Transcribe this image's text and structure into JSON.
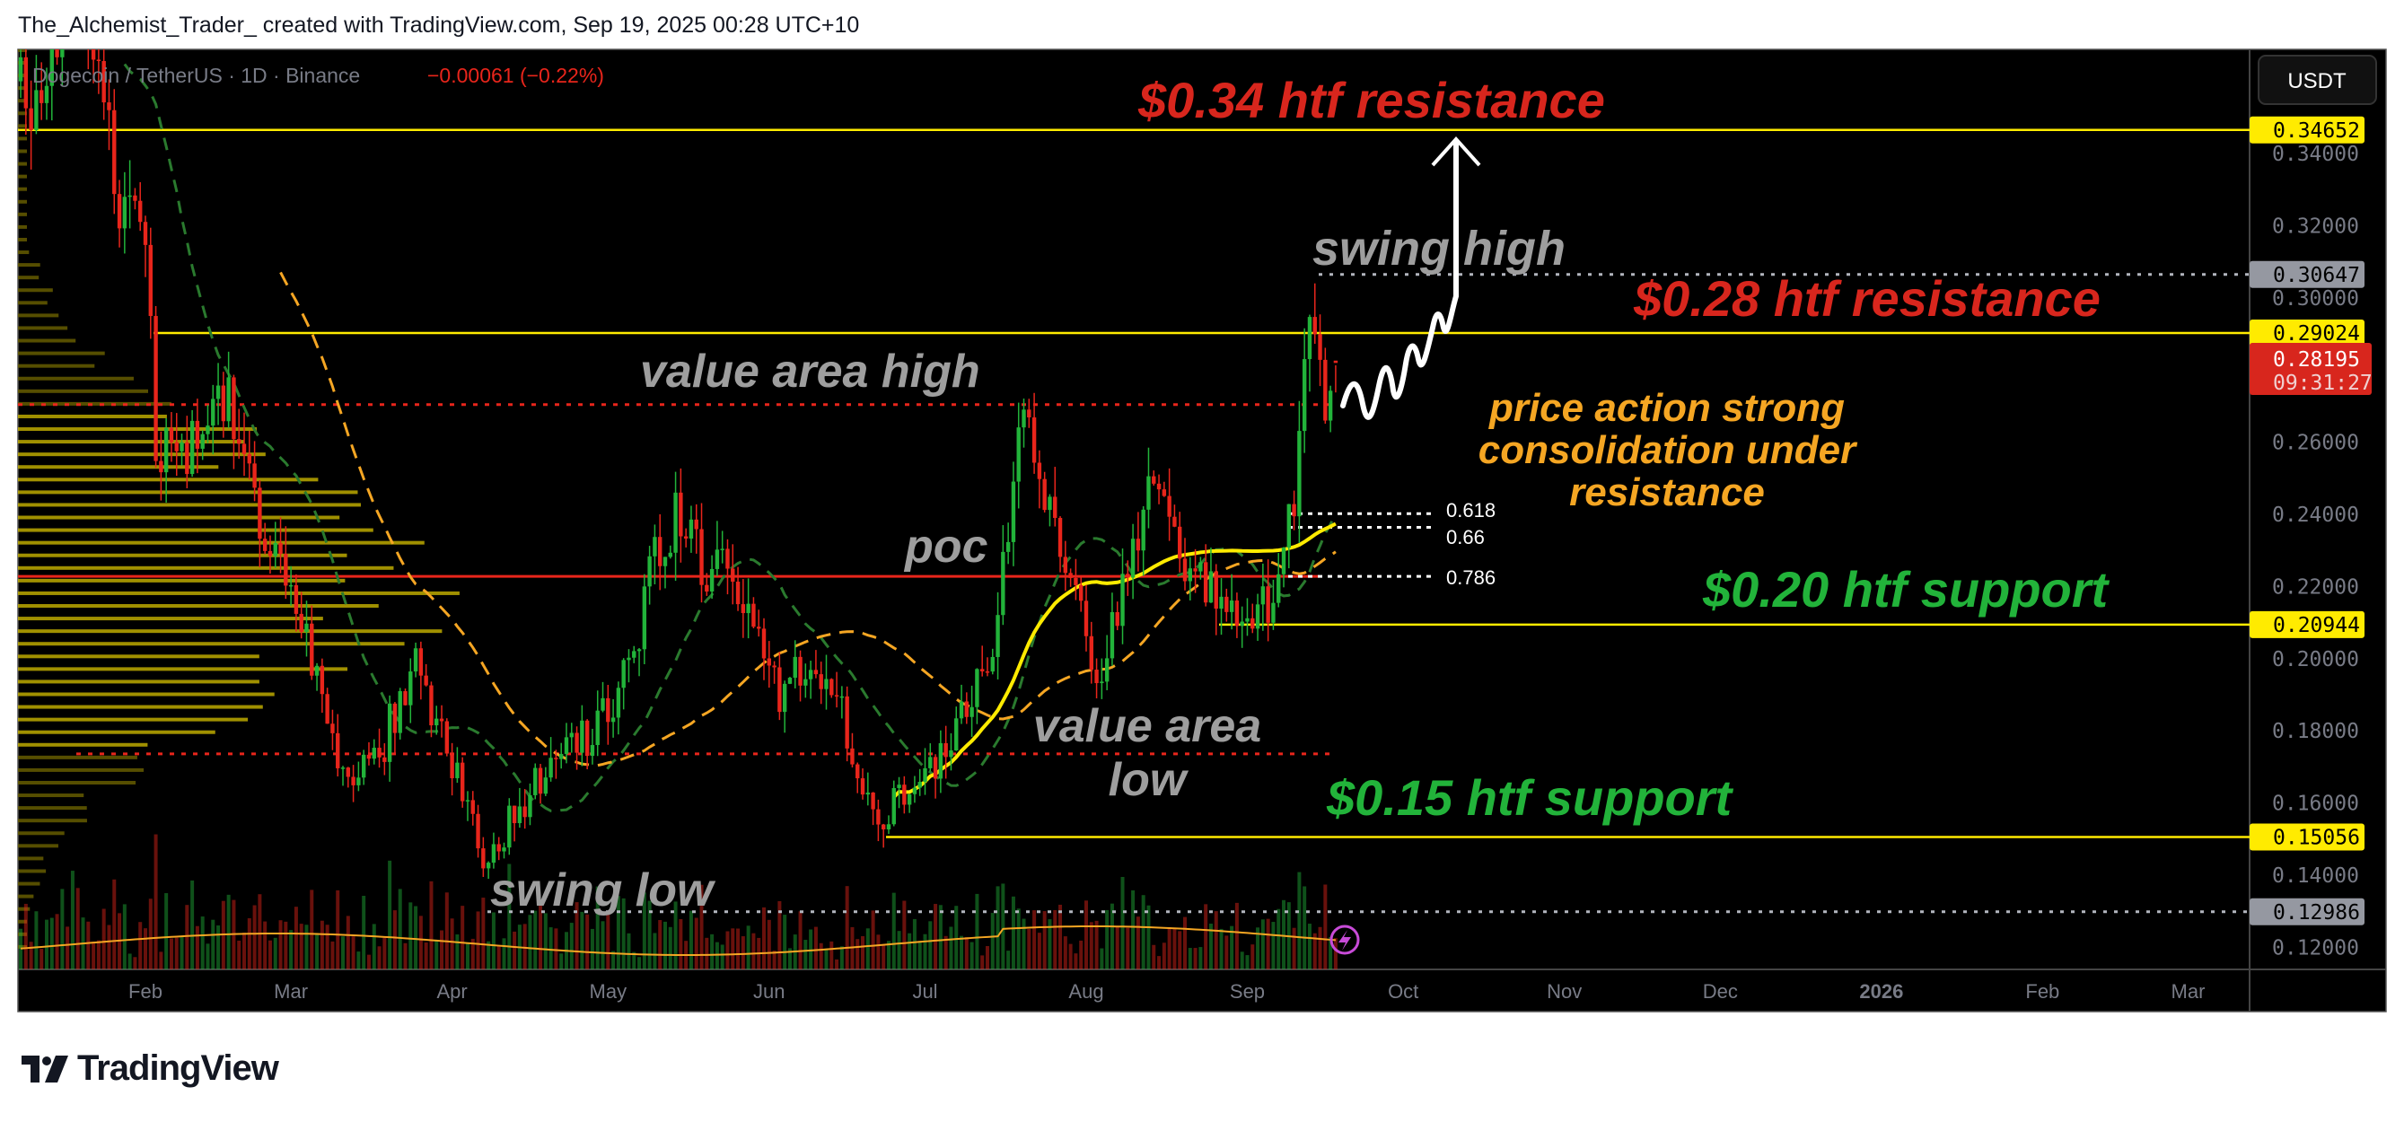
{
  "header": {
    "attribution": "The_Alchemist_Trader_ created with TradingView.com, Sep 19, 2025 00:28 UTC+10"
  },
  "legend": {
    "symbol": "Dogecoin / TetherUS · 1D · Binance",
    "change": "−0.00061 (−0.22%)"
  },
  "price_axis": {
    "currency_button": "USDT",
    "ticks": [
      "0.34000",
      "0.32000",
      "0.30000",
      "0.26000",
      "0.24000",
      "0.22000",
      "0.20000",
      "0.18000",
      "0.16000",
      "0.14000",
      "0.12000"
    ],
    "badges": [
      {
        "value": "0.34652",
        "color": "#ffeb00",
        "text_color": "#000000"
      },
      {
        "value": "0.30647",
        "color": "#9598a1",
        "text_color": "#000000"
      },
      {
        "value": "0.29024",
        "color": "#ffeb00",
        "text_color": "#000000"
      },
      {
        "value": "0.20944",
        "color": "#ffeb00",
        "text_color": "#000000"
      },
      {
        "value": "0.15056",
        "color": "#ffeb00",
        "text_color": "#000000"
      },
      {
        "value": "0.12986",
        "color": "#9598a1",
        "text_color": "#000000"
      }
    ],
    "last_price": {
      "value": "0.28195",
      "countdown": "09:31:27",
      "color": "#d8261d"
    }
  },
  "time_axis": [
    {
      "label": "Feb",
      "date": "2025-02-01"
    },
    {
      "label": "Mar",
      "date": "2025-03-01"
    },
    {
      "label": "Apr",
      "date": "2025-04-01"
    },
    {
      "label": "May",
      "date": "2025-05-01"
    },
    {
      "label": "Jun",
      "date": "2025-06-01"
    },
    {
      "label": "Jul",
      "date": "2025-07-01"
    },
    {
      "label": "Aug",
      "date": "2025-08-01"
    },
    {
      "label": "Sep",
      "date": "2025-09-01"
    },
    {
      "label": "Oct",
      "date": "2025-10-01"
    },
    {
      "label": "Nov",
      "date": "2025-11-01"
    },
    {
      "label": "Dec",
      "date": "2025-12-01"
    },
    {
      "label": "2026",
      "date": "2026-01-01"
    },
    {
      "label": "Feb",
      "date": "2026-02-01"
    },
    {
      "label": "Mar",
      "date": "2026-03-01"
    }
  ],
  "annotations": {
    "res_034": "$0.34 htf resistance",
    "swing_high": "swing high",
    "res_028": "$0.28 htf resistance",
    "vah": "value area high",
    "pa_1": "price action strong",
    "pa_2": "consolidation under",
    "pa_3": "resistance",
    "poc": "poc",
    "sup_020": "$0.20 htf support",
    "val_1": "value area",
    "val_2": "low",
    "sup_015": "$0.15 htf support",
    "swing_low": "swing low",
    "fib_618": "0.618",
    "fib_66": "0.66",
    "fib_786": "0.786"
  },
  "colors": {
    "up": "#22b33a",
    "down": "#e8251b",
    "level": "#ffeb00",
    "resistance_text": "#d8261d",
    "support_text": "#22b33a",
    "note_text": "#9e9e9e",
    "consolidation_text": "#f5a623"
  },
  "branding": {
    "logo": "TradingView"
  },
  "chart_data": {
    "type": "candlestick",
    "interval": "1D",
    "ylim": [
      0.114,
      0.369
    ],
    "xlim": [
      "2025-01-08",
      "2026-03-12"
    ],
    "close_path": [
      [
        "2025-01-08",
        0.36
      ],
      [
        "2025-01-12",
        0.35
      ],
      [
        "2025-01-18",
        0.4
      ],
      [
        "2025-01-21",
        0.37
      ],
      [
        "2025-01-27",
        0.33
      ],
      [
        "2025-02-01",
        0.31
      ],
      [
        "2025-02-03",
        0.26
      ],
      [
        "2025-02-10",
        0.26
      ],
      [
        "2025-02-17",
        0.27
      ],
      [
        "2025-02-24",
        0.23
      ],
      [
        "2025-03-03",
        0.21
      ],
      [
        "2025-03-10",
        0.17
      ],
      [
        "2025-03-17",
        0.17
      ],
      [
        "2025-03-25",
        0.2
      ],
      [
        "2025-04-01",
        0.17
      ],
      [
        "2025-04-07",
        0.145
      ],
      [
        "2025-04-15",
        0.16
      ],
      [
        "2025-04-22",
        0.175
      ],
      [
        "2025-04-29",
        0.18
      ],
      [
        "2025-05-06",
        0.2
      ],
      [
        "2025-05-10",
        0.23
      ],
      [
        "2025-05-14",
        0.24
      ],
      [
        "2025-05-20",
        0.225
      ],
      [
        "2025-05-27",
        0.22
      ],
      [
        "2025-06-03",
        0.19
      ],
      [
        "2025-06-10",
        0.2
      ],
      [
        "2025-06-15",
        0.185
      ],
      [
        "2025-06-22",
        0.155
      ],
      [
        "2025-06-28",
        0.165
      ],
      [
        "2025-07-03",
        0.168
      ],
      [
        "2025-07-10",
        0.19
      ],
      [
        "2025-07-14",
        0.205
      ],
      [
        "2025-07-18",
        0.25
      ],
      [
        "2025-07-21",
        0.27
      ],
      [
        "2025-07-25",
        0.24
      ],
      [
        "2025-07-31",
        0.21
      ],
      [
        "2025-08-03",
        0.195
      ],
      [
        "2025-08-08",
        0.22
      ],
      [
        "2025-08-13",
        0.245
      ],
      [
        "2025-08-17",
        0.235
      ],
      [
        "2025-08-22",
        0.225
      ],
      [
        "2025-08-27",
        0.22
      ],
      [
        "2025-09-01",
        0.21
      ],
      [
        "2025-09-05",
        0.215
      ],
      [
        "2025-09-08",
        0.235
      ],
      [
        "2025-09-10",
        0.245
      ],
      [
        "2025-09-12",
        0.28
      ],
      [
        "2025-09-14",
        0.29
      ],
      [
        "2025-09-16",
        0.27
      ],
      [
        "2025-09-18",
        0.28195
      ]
    ],
    "levels": {
      "htf_resistance": [
        0.34652,
        0.29024
      ],
      "htf_support": [
        0.20944,
        0.15056
      ],
      "swing_high": 0.30647,
      "swing_low": 0.12986
    },
    "volume_profile": {
      "vah": 0.2704,
      "poc": 0.2228,
      "val": 0.1736
    },
    "fib": [
      {
        "level": "0.618",
        "price": 0.2402
      },
      {
        "level": "0.66",
        "price": 0.2364
      },
      {
        "level": "0.786",
        "price": 0.2228
      }
    ]
  }
}
